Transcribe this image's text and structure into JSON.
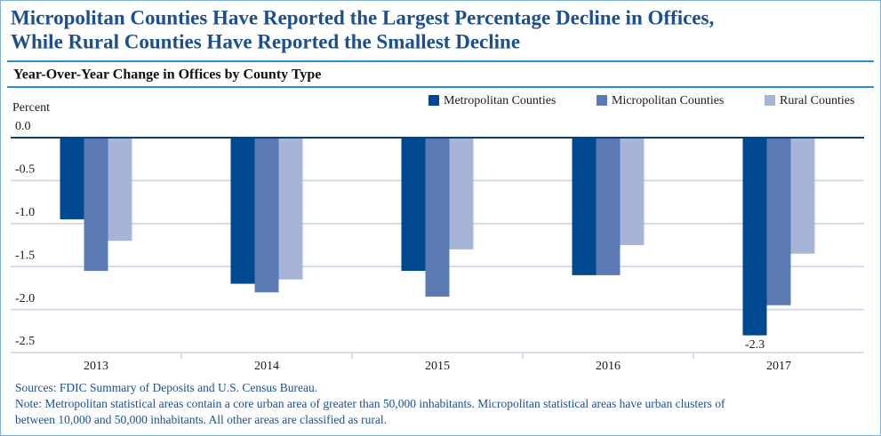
{
  "chart_data": {
    "type": "bar",
    "title": [
      "Micropolitan Counties Have Reported the Largest Percentage Decline in Offices,",
      "While Rural Counties Have Reported the Smallest Decline"
    ],
    "subtitle": "Year-Over-Year Change in Offices by County Type",
    "y_label": "Percent",
    "categories": [
      "2013",
      "2014",
      "2015",
      "2016",
      "2017"
    ],
    "series": [
      {
        "name": "Metropolitan Counties",
        "color": "#004990",
        "values": [
          -0.95,
          -1.7,
          -1.55,
          -1.6,
          -2.3
        ],
        "value_labels": [
          null,
          null,
          null,
          null,
          "-2.3"
        ]
      },
      {
        "name": "Micropolitan Counties",
        "color": "#5b79b3",
        "values": [
          -1.55,
          -1.8,
          -1.85,
          -1.6,
          -1.95
        ]
      },
      {
        "name": "Rural Counties",
        "color": "#a6b4d7",
        "values": [
          -1.2,
          -1.65,
          -1.3,
          -1.25,
          -1.35
        ]
      }
    ],
    "ylim": [
      -2.5,
      0
    ],
    "yticks": [
      {
        "value": 0,
        "label": "0.0"
      },
      -0.5,
      {
        "value": -1,
        "label": "-1.0"
      },
      -1.5,
      {
        "value": -2,
        "label": "-2.0"
      },
      -2.5
    ],
    "grid": true,
    "legend": "top-right",
    "notes": [
      "Sources: FDIC Summary of Deposits and U.S. Census Bureau.",
      "Note: Metropolitan statistical areas contain a core urban area of greater than 50,000 inhabitants.  Micropolitan statistical areas have urban clusters of",
      "between 10,000 and 50,000 inhabitants. All other areas are classified as rural."
    ]
  }
}
